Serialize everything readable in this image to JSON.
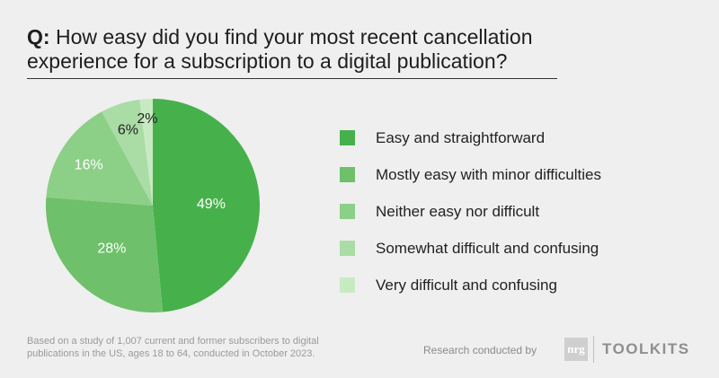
{
  "question": {
    "prefix": "Q:",
    "text": "How easy did you find your most recent cancellation experience for a subscription to a digital publication?"
  },
  "colors": {
    "background": "#efefef",
    "slices": [
      "#46b14a",
      "#6ec06a",
      "#8ccf87",
      "#aadca5",
      "#c8eac3"
    ]
  },
  "chart_data": {
    "type": "pie",
    "title": "How easy did you find your most recent cancellation experience for a subscription to a digital publication?",
    "categories": [
      "Easy and straightforward",
      "Mostly easy with minor difficulties",
      "Neither easy nor difficult",
      "Somewhat difficult and confusing",
      "Very difficult and confusing"
    ],
    "values": [
      49,
      28,
      16,
      6,
      2
    ],
    "data_labels": [
      "49%",
      "28%",
      "16%",
      "6%",
      "2%"
    ],
    "legend_position": "right"
  },
  "footnote": "Based on a study of 1,007 current and former subscribers to digital publications in the US, ages 18 to 64, conducted in October 2023.",
  "credit": {
    "text": "Research conducted by",
    "logo_text": "nrg",
    "brand": "TOOLKITS"
  }
}
